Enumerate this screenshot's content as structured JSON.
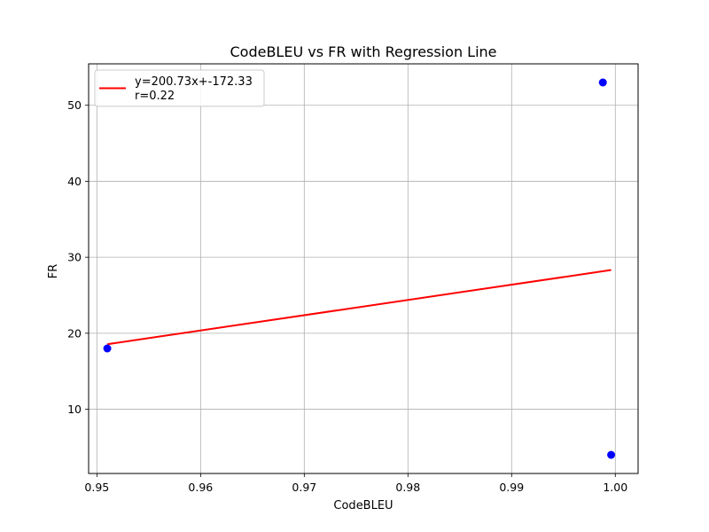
{
  "chart_data": {
    "type": "scatter",
    "title": "CodeBLEU vs FR with Regression Line",
    "xlabel": "CodeBLEU",
    "ylabel": "FR",
    "xlim": [
      0.9492,
      1.0022
    ],
    "ylim": [
      1.55,
      55.45
    ],
    "xticks": [
      0.95,
      0.96,
      0.97,
      0.98,
      0.99,
      1.0
    ],
    "xtick_labels": [
      "0.95",
      "0.96",
      "0.97",
      "0.98",
      "0.99",
      "1.00"
    ],
    "yticks": [
      10,
      20,
      30,
      40,
      50
    ],
    "ytick_labels": [
      "10",
      "20",
      "30",
      "40",
      "50"
    ],
    "grid": true,
    "legend_position": "top-left",
    "points": [
      {
        "x": 0.951,
        "y": 18
      },
      {
        "x": 0.9988,
        "y": 53
      },
      {
        "x": 0.9996,
        "y": 4
      }
    ],
    "point_color": "#0000ff",
    "regression_line": {
      "x": [
        0.951,
        0.9996
      ],
      "y": [
        18.56,
        28.32
      ],
      "color": "#ff0000"
    },
    "legend": {
      "line1": "y=200.73x+-172.33",
      "line2": "r=0.22"
    }
  }
}
